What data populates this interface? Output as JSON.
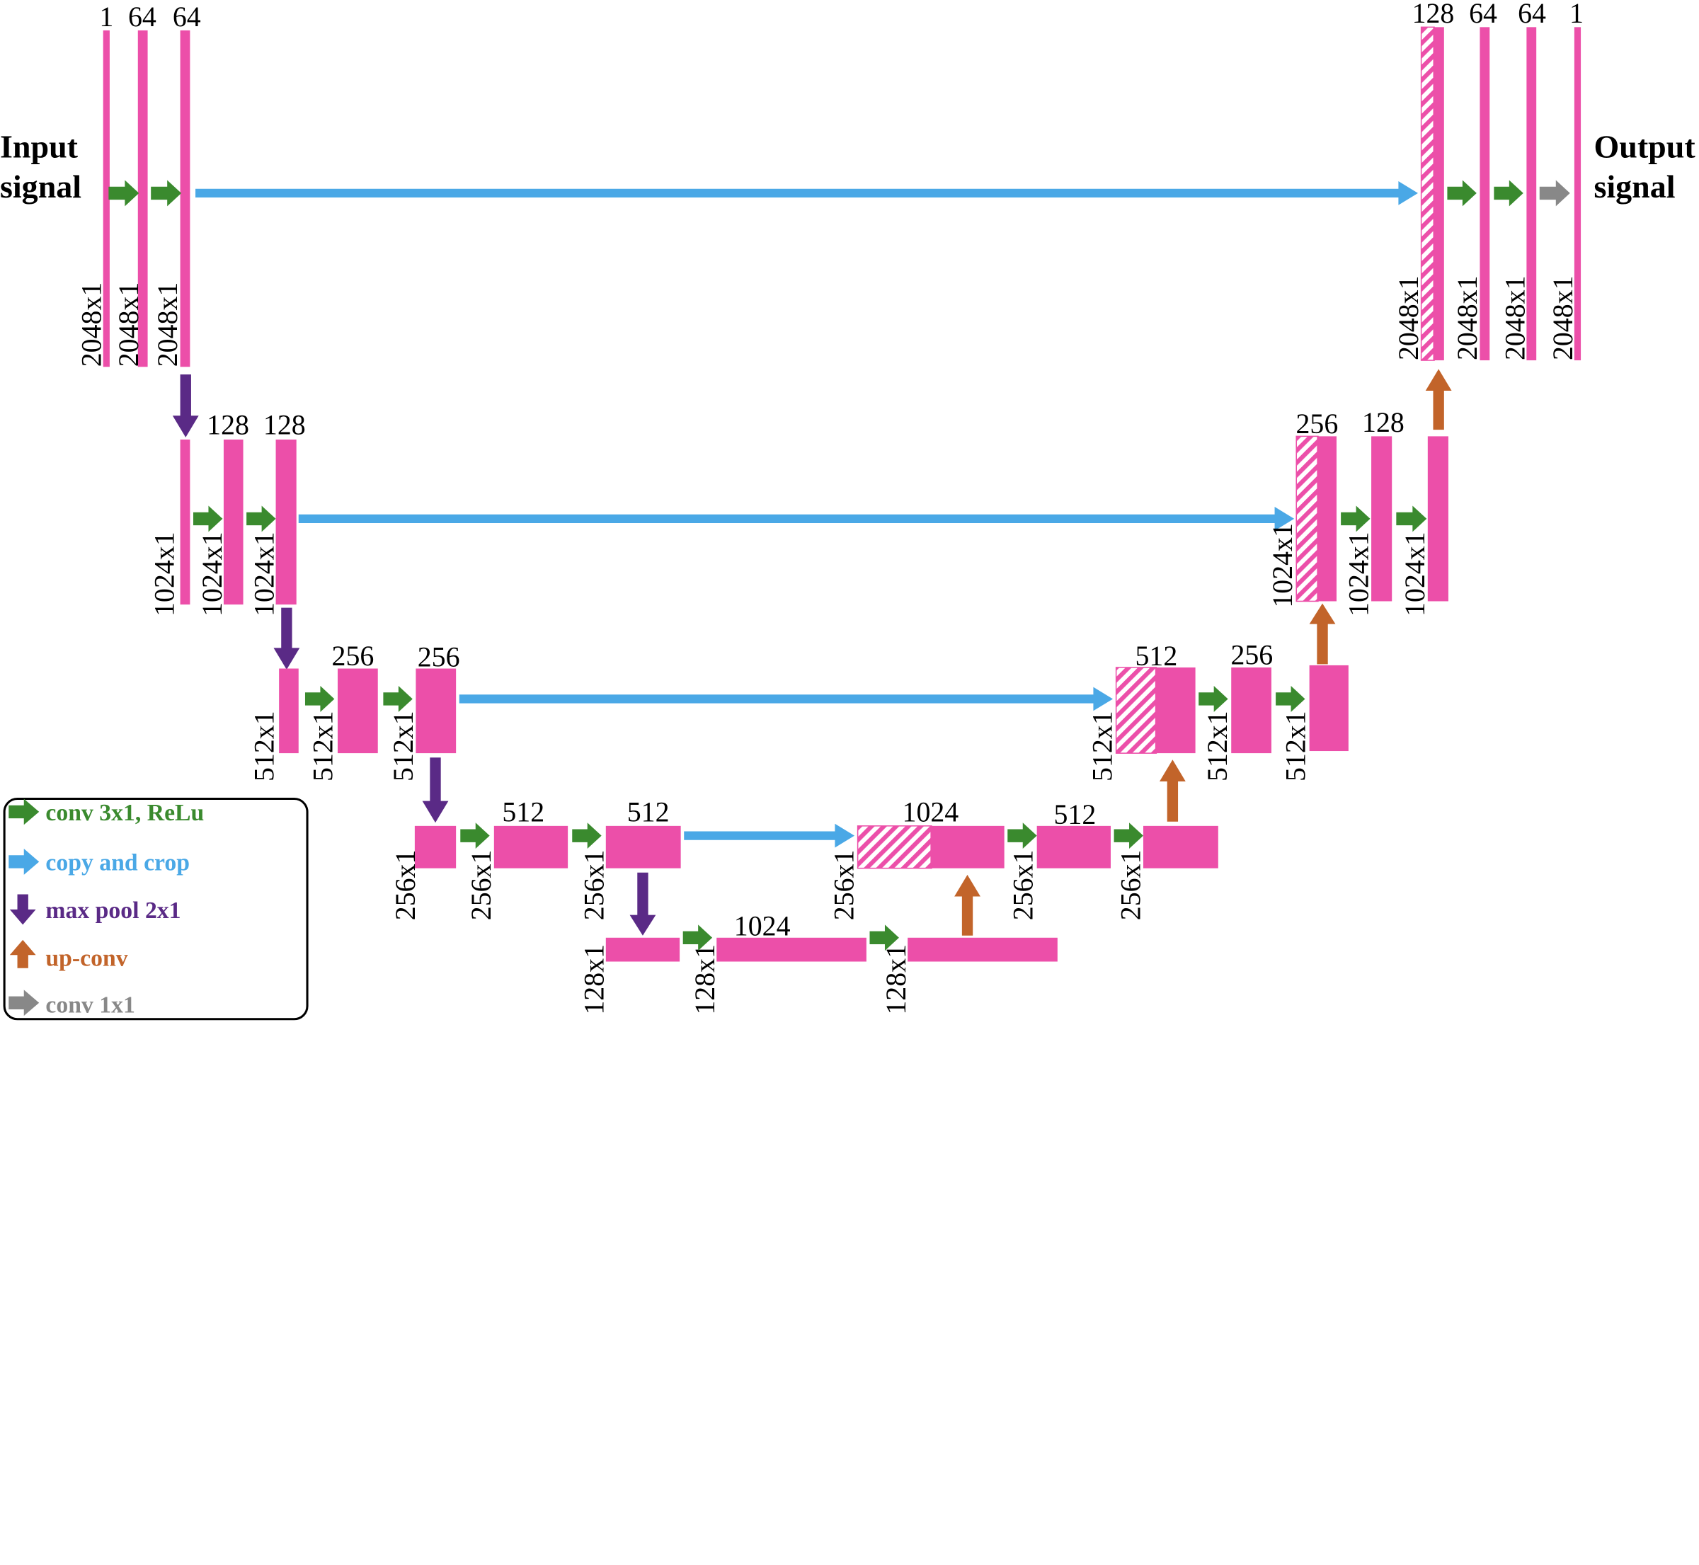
{
  "colors": {
    "block": "#ec4fa9",
    "conv": "#3a8a2e",
    "copy": "#4aa8e6",
    "pool": "#5a2a86",
    "upconv": "#c2642a",
    "conv1x1": "#888888"
  },
  "io": {
    "input_line1": "Input",
    "input_line2": "signal",
    "output_line1": "Output",
    "output_line2": "signal"
  },
  "levels": [
    {
      "size": "2048x1",
      "encoder": {
        "channels": [
          "1",
          "64",
          "64"
        ],
        "sizes": [
          "2048x1",
          "2048x1",
          "2048x1"
        ]
      },
      "decoder": {
        "channels": [
          "128",
          "64",
          "64",
          "1"
        ],
        "sizes": [
          "2048x1",
          "2048x1",
          "2048x1",
          "2048x1"
        ]
      }
    },
    {
      "size": "1024x1",
      "encoder": {
        "channels": [
          "",
          "128",
          "128"
        ],
        "sizes": [
          "1024x1",
          "1024x1",
          "1024x1"
        ]
      },
      "decoder": {
        "channels": [
          "256",
          "128",
          ""
        ],
        "sizes": [
          "1024x1",
          "1024x1",
          "1024x1"
        ]
      }
    },
    {
      "size": "512x1",
      "encoder": {
        "channels": [
          "",
          "256",
          "256"
        ],
        "sizes": [
          "512x1",
          "512x1",
          "512x1"
        ]
      },
      "decoder": {
        "channels": [
          "512",
          "256",
          ""
        ],
        "sizes": [
          "512x1",
          "512x1",
          "512x1"
        ]
      }
    },
    {
      "size": "256x1",
      "encoder": {
        "channels": [
          "",
          "512",
          "512"
        ],
        "sizes": [
          "256x1",
          "256x1",
          "256x1"
        ]
      },
      "decoder": {
        "channels": [
          "1024",
          "512",
          ""
        ],
        "sizes": [
          "256x1",
          "256x1",
          "256x1"
        ]
      }
    },
    {
      "size": "128x1",
      "bottleneck": {
        "channels": [
          "",
          "1024",
          ""
        ],
        "sizes": [
          "128x1",
          "128x1",
          "128x1"
        ]
      }
    }
  ],
  "legend": {
    "conv": "conv 3x1, ReLu",
    "copy": "copy and crop",
    "pool": "max pool 2x1",
    "upconv": "up-conv",
    "conv1x1": "conv 1x1"
  }
}
